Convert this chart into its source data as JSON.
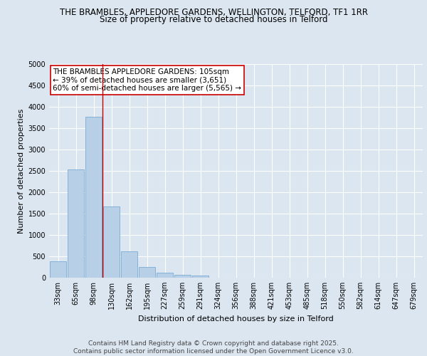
{
  "title_line1": "THE BRAMBLES, APPLEDORE GARDENS, WELLINGTON, TELFORD, TF1 1RR",
  "title_line2": "Size of property relative to detached houses in Telford",
  "xlabel": "Distribution of detached houses by size in Telford",
  "ylabel": "Number of detached properties",
  "categories": [
    "33sqm",
    "65sqm",
    "98sqm",
    "130sqm",
    "162sqm",
    "195sqm",
    "227sqm",
    "259sqm",
    "291sqm",
    "324sqm",
    "356sqm",
    "388sqm",
    "421sqm",
    "453sqm",
    "485sqm",
    "518sqm",
    "550sqm",
    "582sqm",
    "614sqm",
    "647sqm",
    "679sqm"
  ],
  "values": [
    380,
    2540,
    3770,
    1660,
    620,
    245,
    110,
    65,
    55,
    0,
    0,
    0,
    0,
    0,
    0,
    0,
    0,
    0,
    0,
    0,
    0
  ],
  "bar_color": "#b8cfe8",
  "bar_edge_color": "#7aabd4",
  "vline_x_index": 2.5,
  "vline_color": "#cc0000",
  "annotation_text": "THE BRAMBLES APPLEDORE GARDENS: 105sqm\n← 39% of detached houses are smaller (3,651)\n60% of semi-detached houses are larger (5,565) →",
  "annotation_box_color": "#ffffff",
  "annotation_box_edgecolor": "#cc0000",
  "ylim": [
    0,
    5000
  ],
  "yticks": [
    0,
    500,
    1000,
    1500,
    2000,
    2500,
    3000,
    3500,
    4000,
    4500,
    5000
  ],
  "bg_color": "#dce6f0",
  "plot_bg_color": "#dce6f0",
  "footer_text": "Contains HM Land Registry data © Crown copyright and database right 2025.\nContains public sector information licensed under the Open Government Licence v3.0.",
  "title_fontsize": 8.5,
  "subtitle_fontsize": 8.5,
  "axis_label_fontsize": 8,
  "tick_fontsize": 7,
  "footer_fontsize": 6.5,
  "annotation_fontsize": 7.5
}
